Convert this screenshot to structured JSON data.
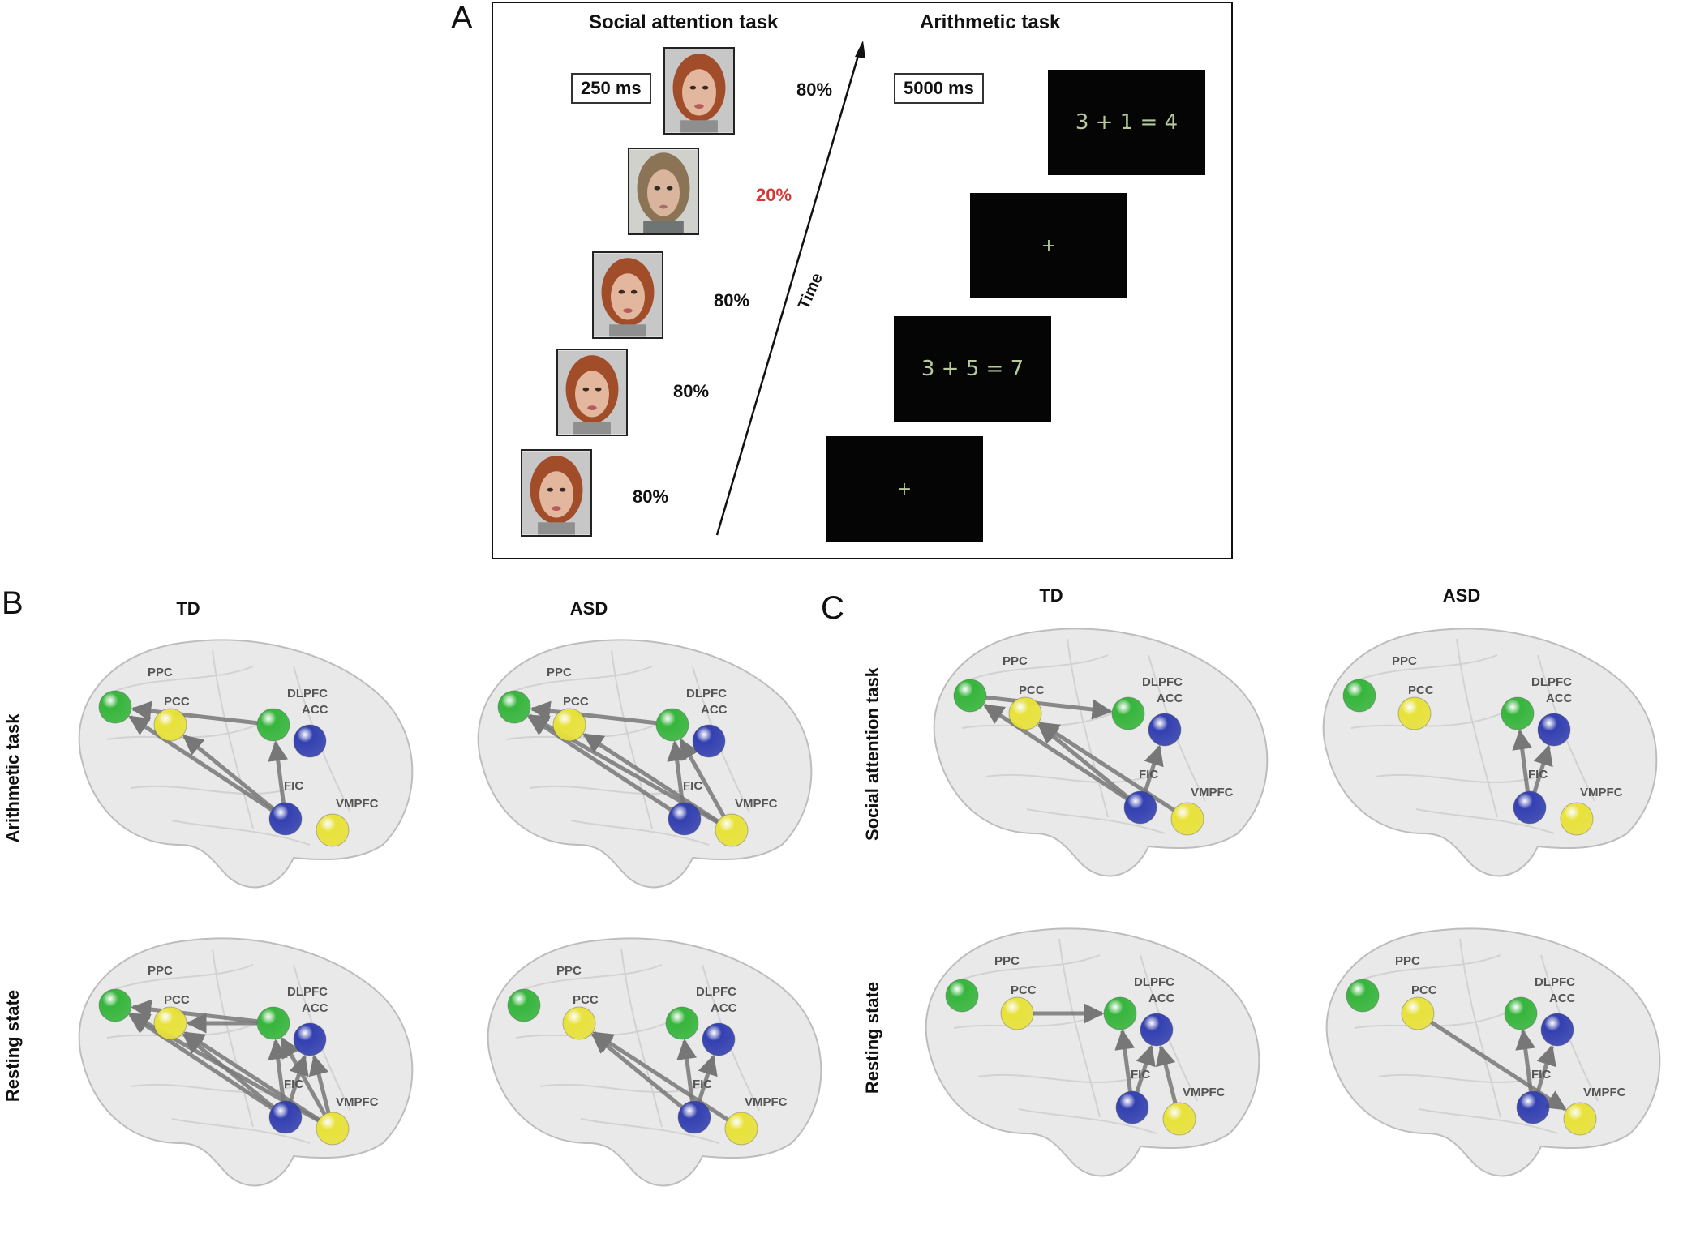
{
  "panel_letters": {
    "a": "A",
    "b": "B",
    "c": "C"
  },
  "panel_a": {
    "social_title": "Social attention task",
    "arithmetic_title": "Arithmetic task",
    "social_duration": "250 ms",
    "arithmetic_duration": "5000 ms",
    "time_label": "Time",
    "percentages": [
      "80%",
      "20%",
      "80%",
      "80%",
      "80%"
    ],
    "oddball_color": "#d23a3a",
    "screens": [
      "3 + 1 = 4",
      "+",
      "3 + 5 = 7",
      "+"
    ]
  },
  "panel_b": {
    "col_titles": [
      "TD",
      "ASD"
    ],
    "row_titles": [
      "Arithmetic task",
      "Resting state"
    ]
  },
  "panel_c": {
    "col_titles": [
      "TD",
      "ASD"
    ],
    "row_titles": [
      "Social attention task",
      "Resting state"
    ]
  },
  "regions": {
    "PPC": "PPC",
    "PCC": "PCC",
    "DLPFC": "DLPFC",
    "ACC": "ACC",
    "FIC": "FIC",
    "VMPFC": "VMPFC"
  },
  "node_colors": {
    "green": "#36b53c",
    "yellow": "#e8e23a",
    "blue": "#3340b0"
  }
}
